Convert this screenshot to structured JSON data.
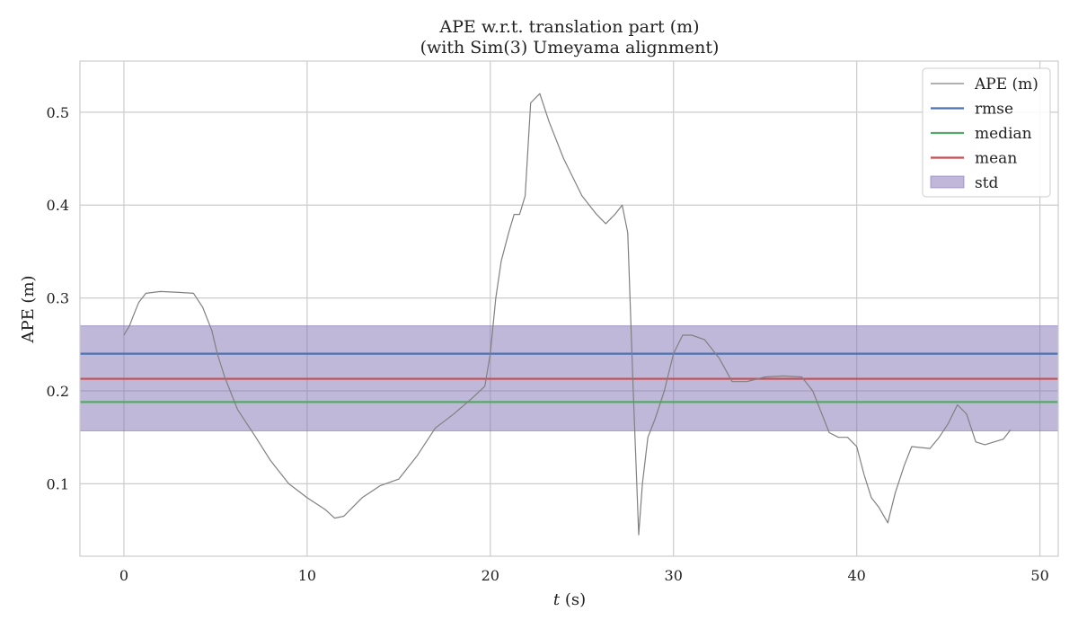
{
  "chart_data": {
    "type": "line",
    "title": "APE w.r.t. translation part (m)",
    "subtitle": "(with Sim(3) Umeyama alignment)",
    "xlabel_italic": "t",
    "xlabel_unit": " (s)",
    "ylabel": "APE (m)",
    "xlim": [
      -2.4,
      51
    ],
    "ylim": [
      0.022,
      0.555
    ],
    "xticks": [
      0,
      10,
      20,
      30,
      40,
      50
    ],
    "yticks": [
      0.1,
      0.2,
      0.3,
      0.4,
      0.5
    ],
    "grid": true,
    "legend_position": "top-right",
    "series": [
      {
        "name": "APE (m)",
        "color": "#808080",
        "x": [
          0,
          0.3,
          0.5,
          0.8,
          1.2,
          2,
          3,
          3.8,
          4.3,
          4.8,
          5.1,
          5.5,
          5.8,
          6.2,
          6.7,
          7.2,
          8,
          9,
          10,
          11,
          11.5,
          12,
          12.5,
          13,
          14,
          15,
          16,
          17,
          18,
          19,
          19.7,
          20,
          20.3,
          20.6,
          21,
          21.3,
          21.6,
          21.9,
          22.2,
          22.7,
          23.2,
          24,
          25,
          25.8,
          26.3,
          26.8,
          27.2,
          27.5,
          27.8,
          28.1,
          28.3,
          28.6,
          29,
          29.5,
          30,
          30.5,
          31,
          31.7,
          32.5,
          33.2,
          34,
          35,
          36,
          37,
          37.6,
          38,
          38.5,
          39,
          39.5,
          40,
          40.4,
          40.8,
          41.2,
          41.7,
          42.1,
          42.6,
          43,
          44,
          44.5,
          45,
          45.5,
          46,
          46.5,
          47,
          48,
          48.4
        ],
        "y": [
          0.26,
          0.27,
          0.28,
          0.295,
          0.305,
          0.307,
          0.306,
          0.305,
          0.29,
          0.265,
          0.24,
          0.215,
          0.2,
          0.18,
          0.165,
          0.15,
          0.125,
          0.1,
          0.085,
          0.072,
          0.063,
          0.065,
          0.075,
          0.085,
          0.098,
          0.105,
          0.13,
          0.16,
          0.175,
          0.192,
          0.205,
          0.24,
          0.3,
          0.34,
          0.37,
          0.39,
          0.39,
          0.41,
          0.51,
          0.52,
          0.49,
          0.45,
          0.41,
          0.39,
          0.38,
          0.39,
          0.4,
          0.37,
          0.2,
          0.045,
          0.1,
          0.15,
          0.17,
          0.2,
          0.24,
          0.26,
          0.26,
          0.255,
          0.235,
          0.21,
          0.21,
          0.215,
          0.216,
          0.215,
          0.2,
          0.18,
          0.155,
          0.15,
          0.15,
          0.14,
          0.11,
          0.085,
          0.075,
          0.058,
          0.09,
          0.12,
          0.14,
          0.138,
          0.15,
          0.165,
          0.185,
          0.175,
          0.145,
          0.142,
          0.148,
          0.158
        ]
      }
    ],
    "stats": [
      {
        "name": "rmse",
        "value": 0.24,
        "color": "#4c72b0"
      },
      {
        "name": "median",
        "value": 0.188,
        "color": "#55a868"
      },
      {
        "name": "mean",
        "value": 0.213,
        "color": "#c44e52"
      }
    ],
    "std_band": {
      "name": "std",
      "low": 0.157,
      "high": 0.27,
      "color": "#8172b2"
    }
  }
}
